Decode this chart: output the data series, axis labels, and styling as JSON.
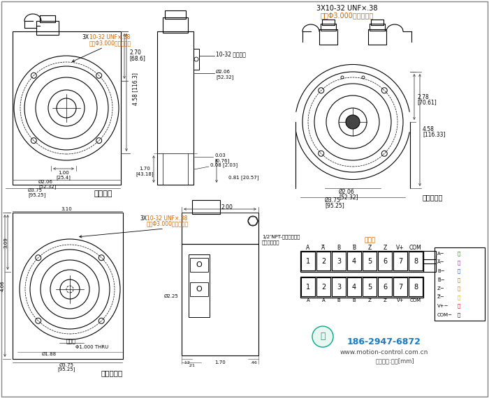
{
  "bg_color": "#ffffff",
  "lc": "#000000",
  "oc": "#cc6600",
  "bc": "#1a7abf",
  "gc": "#00aa88",
  "top_ann1": "3X10-32 UNF×.38",
  "top_ann2": "深在Φ3.000螺栓圆周上",
  "ann_3x_1": "10-32 UNF×.38",
  "ann_3x_2": "深在Φ3.000螺栓圆周上",
  "clamp_screw": "10-32 夹紧螺钉",
  "std_housing": "标准外壳",
  "redundant": "冗余双输出",
  "terminal_out": "端子盒输出",
  "wiring_label": "接线端",
  "npt_label1": "1/2’NPT-典型两端提供",
  "npt_label2": "可拆卸的塞子",
  "shaft_clamp": "轴夹紧",
  "phone": "186-2947-6872",
  "web": "www.motion-control.com.cn",
  "unit": "尺寸单位:英寸[mm]"
}
